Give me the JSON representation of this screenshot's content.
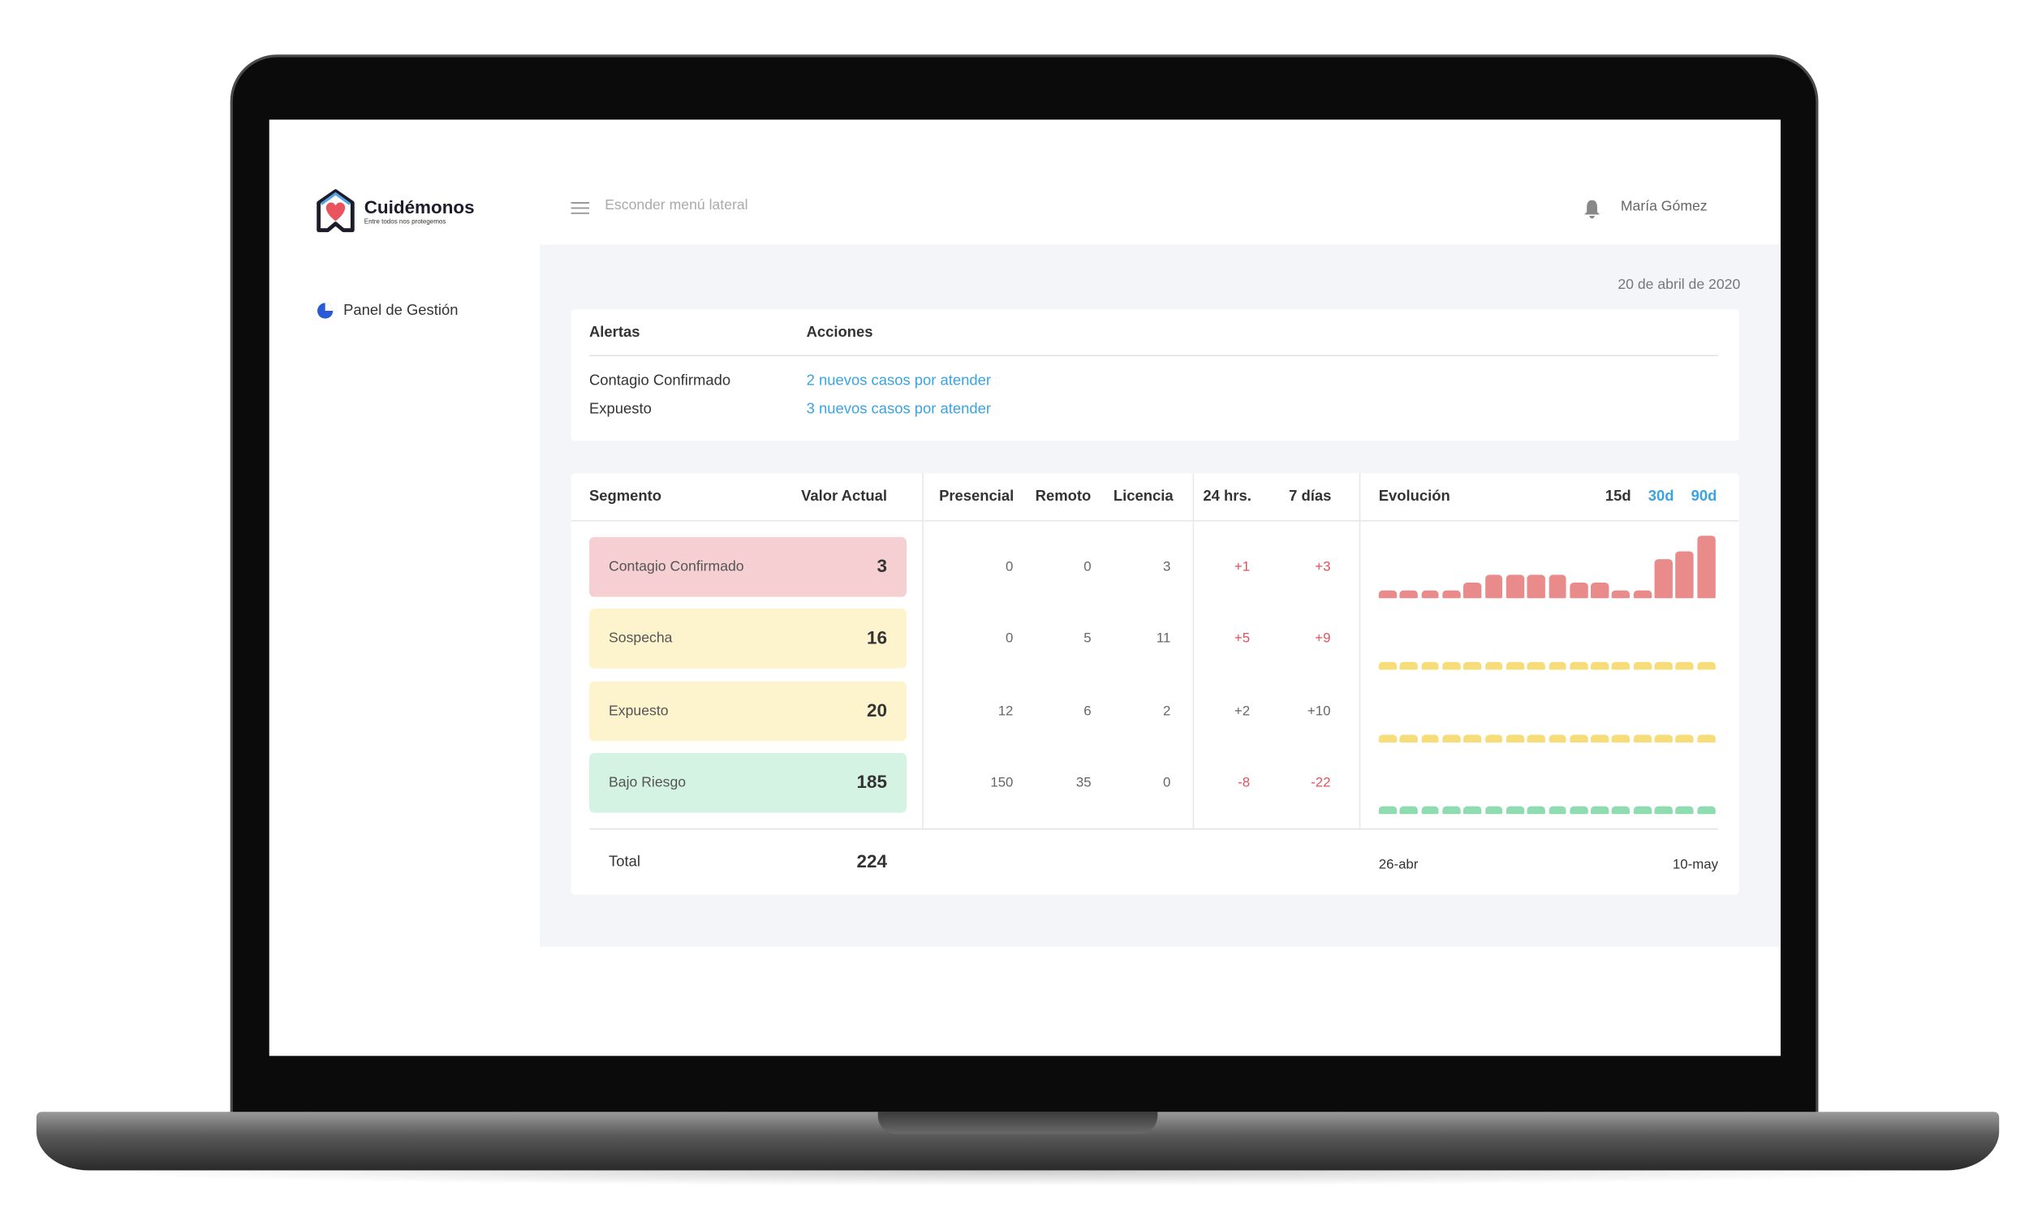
{
  "sidebar": {
    "brand": "Cuidémonos",
    "tagline": "Entre todos nos protegemos",
    "menu": [
      "Panel de Gestión"
    ]
  },
  "header": {
    "toggle": "Esconder menú lateral",
    "user": "María Gómez"
  },
  "date": "20 de abril de 2020",
  "alerts": {
    "columns": [
      "Alertas",
      "Acciones"
    ],
    "rows": [
      [
        "Contagio Confirmado",
        "2 nuevos casos por atender"
      ],
      [
        "Expuesto",
        "3 nuevos casos por atender"
      ]
    ]
  },
  "segments": {
    "columns": [
      "Segmento",
      "Valor Actual",
      "Presencial",
      "Remoto",
      "Licencia",
      "24 hrs.",
      "7 días",
      "Evolución"
    ],
    "ranges": [
      "15d",
      "30d",
      "90d"
    ],
    "selected_range": 0,
    "rows": [
      {
        "name": "Contagio Confirmado",
        "value": 3,
        "cells": [
          0,
          0,
          3,
          "+1",
          "+3"
        ],
        "alert": true,
        "color": "#e98b8b",
        "background": "#f6cfd2",
        "evolution": [
          0,
          0,
          0,
          0,
          1,
          2,
          2,
          2,
          2,
          1,
          1,
          0,
          0,
          4,
          5,
          7
        ]
      },
      {
        "name": "Sospecha",
        "value": 16,
        "cells": [
          0,
          5,
          11,
          "+5",
          "+9"
        ],
        "alert": true,
        "color": "#f7dc7a",
        "background": "#fdf3cd",
        "evolution": [
          0,
          0,
          0,
          0,
          0,
          0,
          0,
          0,
          0,
          0,
          0,
          0,
          0,
          0,
          0,
          0
        ]
      },
      {
        "name": "Expuesto",
        "value": 20,
        "cells": [
          12,
          6,
          2,
          "+2",
          "+10"
        ],
        "alert": false,
        "color": "#f7dc7a",
        "background": "#fdf3cd",
        "evolution": [
          0,
          0,
          0,
          0,
          0,
          0,
          0,
          0,
          0,
          0,
          0,
          0,
          0,
          0,
          0,
          0
        ]
      },
      {
        "name": "Bajo Riesgo",
        "value": 185,
        "cells": [
          150,
          35,
          0,
          "-8",
          "-22"
        ],
        "alert": true,
        "color": "#8fdcb0",
        "background": "#d5f3e3",
        "evolution": [
          0,
          0,
          0,
          0,
          0,
          0,
          0,
          0,
          0,
          0,
          0,
          0,
          0,
          0,
          0,
          0
        ]
      }
    ],
    "total": {
      "label": "Total",
      "value": 224
    },
    "axis": [
      "26-abr",
      "10-may"
    ]
  }
}
